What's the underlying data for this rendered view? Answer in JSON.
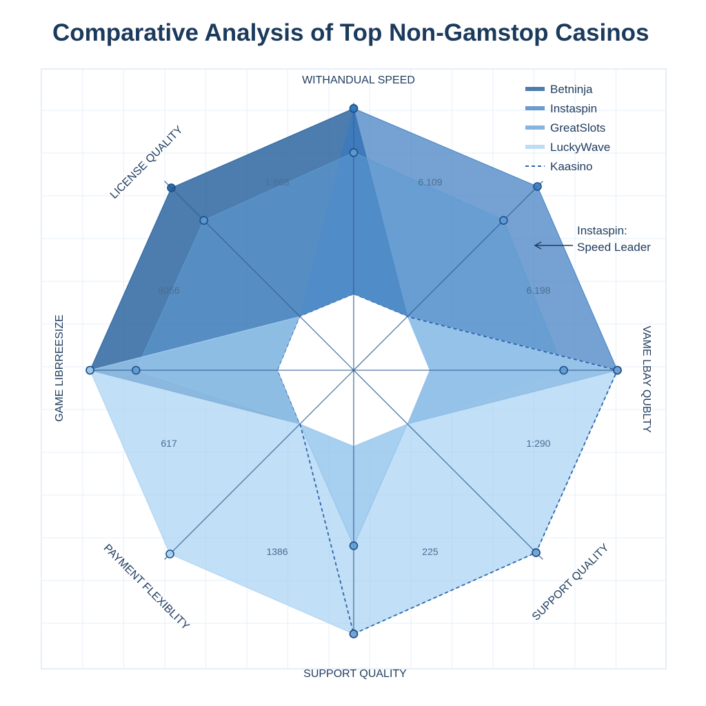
{
  "title": "Comparative Analysis of Top Non-Gamstop Casinos",
  "chart_data": {
    "type": "radar",
    "axes": [
      "WITHANDUAL SPEED",
      "",
      "VAME LBAY QUBLTY",
      "SUPPORT QUALITY",
      "SUPPORT QUALITY",
      "PAYMENT FLEXIBLITY",
      "GAME LIBRREESIZE",
      "LICENSE QUALITY"
    ],
    "scale": [
      0,
      1
    ],
    "series": [
      {
        "name": "Betninja",
        "color": "#1f5c9a",
        "opacity": 0.8,
        "dashed": false,
        "values": [
          0.97,
          0.0,
          0.0,
          0.0,
          0.0,
          0.0,
          0.98,
          0.95
        ]
      },
      {
        "name": "Instaspin",
        "color": "#3a7bc0",
        "opacity": 0.7,
        "dashed": false,
        "values": [
          0.97,
          0.96,
          0.98,
          0.0,
          0.0,
          0.0,
          0.0,
          0.0
        ]
      },
      {
        "name": "GreatSlots",
        "color": "#5e9bd3",
        "opacity": 0.55,
        "dashed": false,
        "values": [
          0.74,
          0.71,
          0.7,
          0.0,
          0.52,
          0.0,
          0.74,
          0.71
        ]
      },
      {
        "name": "LuckyWave",
        "color": "#a7d1f2",
        "opacity": 0.7,
        "dashed": false,
        "values": [
          0.0,
          0.0,
          0.98,
          0.95,
          0.98,
          0.96,
          0.98,
          0.0
        ]
      },
      {
        "name": "Kaasino",
        "color": "#2e63aa",
        "opacity": 1.0,
        "dashed": true,
        "values": [
          0.0,
          0.0,
          0.98,
          0.95,
          0.98,
          0.0,
          0.0,
          0.0
        ]
      }
    ],
    "value_labels": [
      "6.109",
      "6.198",
      "1:290",
      "225",
      "1386",
      "617",
      "8056",
      "1:688"
    ],
    "annotation": {
      "line1": "Instaspin:",
      "line2": "Speed Leader"
    },
    "grid": true,
    "legend_position": "top-right"
  }
}
